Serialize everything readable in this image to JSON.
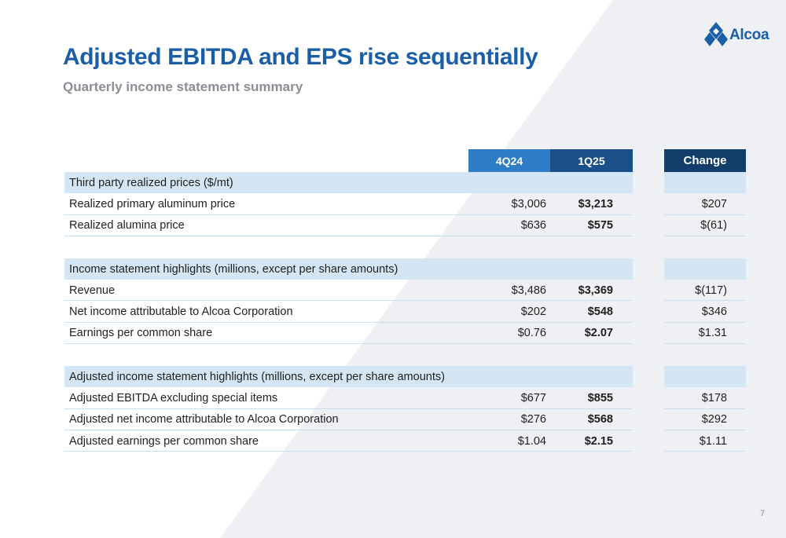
{
  "brand": {
    "name": "Alcoa",
    "color": "#1b5ea8"
  },
  "slide": {
    "title": "Adjusted EBITDA and EPS rise sequentially",
    "subtitle": "Quarterly income statement summary",
    "page_number": "7"
  },
  "table": {
    "headers": {
      "col1": "4Q24",
      "col2": "1Q25",
      "change": "Change"
    },
    "sections": [
      {
        "heading": "Third party realized prices ($/mt)",
        "rows": [
          {
            "label": "Realized primary aluminum price",
            "q4_24": "$3,006",
            "q1_25": "$3,213",
            "change": "$207"
          },
          {
            "label": "Realized alumina price",
            "q4_24": "$636",
            "q1_25": "$575",
            "change": "$(61)"
          }
        ]
      },
      {
        "heading": "Income statement highlights (millions, except per share amounts)",
        "rows": [
          {
            "label": "Revenue",
            "q4_24": "$3,486",
            "q1_25": "$3,369",
            "change": "$(117)"
          },
          {
            "label": "Net income attributable to Alcoa Corporation",
            "q4_24": "$202",
            "q1_25": "$548",
            "change": "$346"
          },
          {
            "label": "Earnings per common share",
            "q4_24": "$0.76",
            "q1_25": "$2.07",
            "change": "$1.31"
          }
        ]
      },
      {
        "heading": "Adjusted income statement highlights (millions, except per share amounts)",
        "rows": [
          {
            "label": "Adjusted EBITDA excluding special items",
            "q4_24": "$677",
            "q1_25": "$855",
            "change": "$178"
          },
          {
            "label": "Adjusted net income attributable to Alcoa Corporation",
            "q4_24": "$276",
            "q1_25": "$568",
            "change": "$292"
          },
          {
            "label": "Adjusted earnings per common share",
            "q4_24": "$1.04",
            "q1_25": "$2.15",
            "change": "$1.11"
          }
        ]
      }
    ]
  },
  "colors": {
    "title": "#1b5ea8",
    "subtitle": "#8a8f95",
    "header_4q24": "#2e7dc6",
    "header_1q25": "#1a4f88",
    "header_change": "#133d6b",
    "section_band": "#d4e6f4",
    "background_triangle": "#eef0f3"
  },
  "icons": {
    "logo": "alcoa-diamond-logo-icon"
  }
}
